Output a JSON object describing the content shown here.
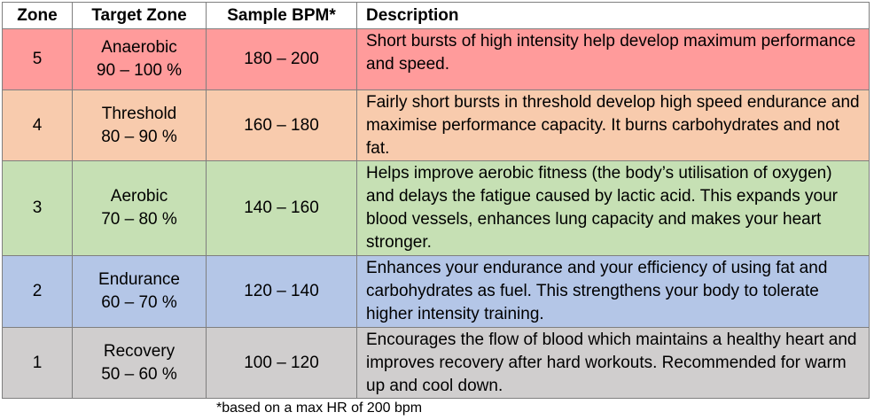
{
  "headers": {
    "zone": "Zone",
    "target": "Target Zone",
    "bpm": "Sample BPM*",
    "description": "Description"
  },
  "rows": [
    {
      "zone": "5",
      "name": "Anaerobic",
      "range": "90 – 100 %",
      "bpm": "180 – 200",
      "description": "Short bursts of high intensity help develop maximum performance and speed.",
      "color": "#ff9b9b"
    },
    {
      "zone": "4",
      "name": "Threshold",
      "range": "80 – 90 %",
      "bpm": "160 – 180",
      "description": "Fairly short bursts in threshold develop high speed endurance and maximise performance capacity. It burns carbohydrates and not fat.",
      "color": "#f8cbad"
    },
    {
      "zone": "3",
      "name": "Aerobic",
      "range": "70 – 80 %",
      "bpm": "140 – 160",
      "description": "Helps improve aerobic fitness (the body’s utilisation of oxygen) and delays the fatigue caused by lactic acid. This expands your blood vessels, enhances lung capacity and makes your heart stronger.",
      "color": "#c6e0b4"
    },
    {
      "zone": "2",
      "name": "Endurance",
      "range": "60 – 70 %",
      "bpm": "120 – 140",
      "description": "Enhances your endurance and your efficiency of using fat and carbohydrates as fuel. This strengthens your body to tolerate higher intensity training.",
      "color": "#b4c6e7"
    },
    {
      "zone": "1",
      "name": "Recovery",
      "range": "50 – 60 %",
      "bpm": "100 – 120",
      "description": "Encourages the flow of blood which maintains a healthy heart and improves recovery after hard workouts. Recommended for warm up and cool down.",
      "color": "#d0cece"
    }
  ],
  "footnote": "*based on a max HR of 200 bpm"
}
